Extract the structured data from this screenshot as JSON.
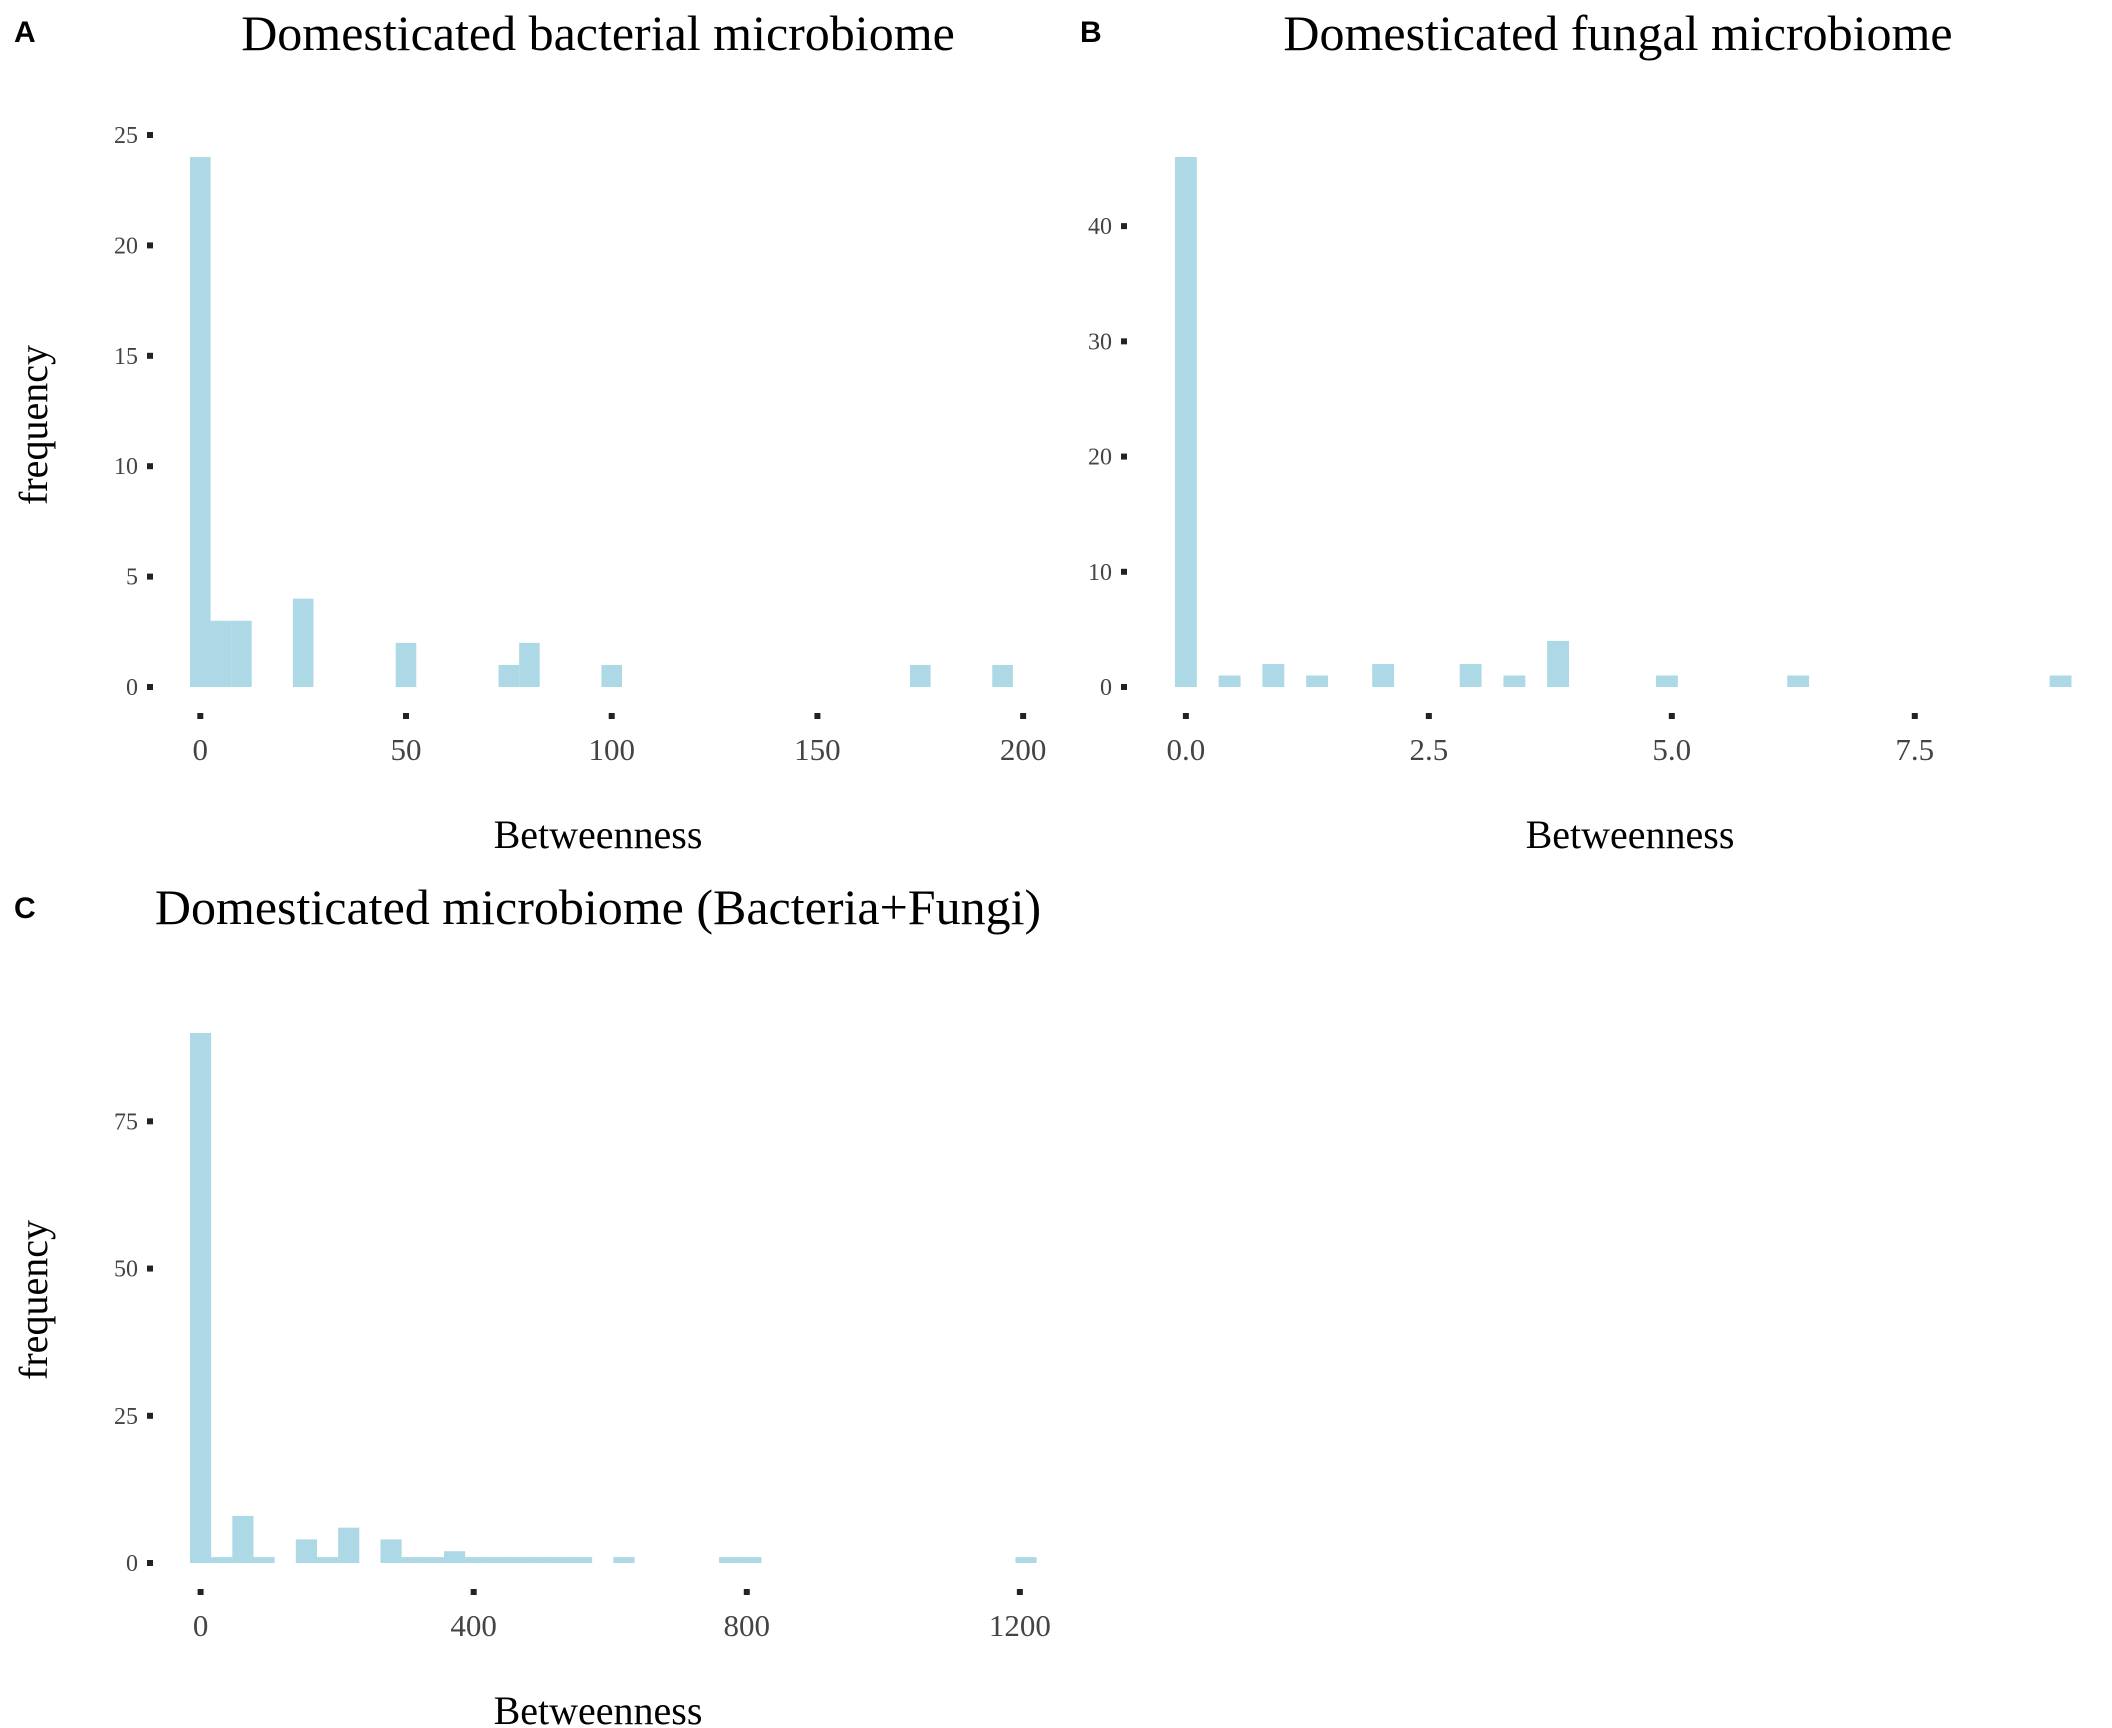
{
  "chart_data": [
    {
      "panel": "A",
      "type": "bar",
      "title": "Domesticated bacterial microbiome",
      "xlabel": "Betweenness",
      "ylabel": "frequency",
      "bin_width": 5,
      "xlim": [
        -2.5,
        207.5
      ],
      "ylim": [
        0,
        25
      ],
      "xticks": [
        0,
        50,
        100,
        150,
        200
      ],
      "xtick_labels": [
        "0",
        "50",
        "100",
        "150",
        "200"
      ],
      "yticks": [
        0,
        5,
        10,
        15,
        20,
        25
      ],
      "ytick_labels": [
        "0",
        "5",
        "10",
        "15",
        "20",
        "25"
      ],
      "bins": [
        {
          "x": 0,
          "count": 24
        },
        {
          "x": 5,
          "count": 3
        },
        {
          "x": 10,
          "count": 3
        },
        {
          "x": 25,
          "count": 4
        },
        {
          "x": 50,
          "count": 2
        },
        {
          "x": 75,
          "count": 1
        },
        {
          "x": 80,
          "count": 2
        },
        {
          "x": 100,
          "count": 1
        },
        {
          "x": 175,
          "count": 1
        },
        {
          "x": 195,
          "count": 1
        }
      ],
      "grid": false
    },
    {
      "panel": "B",
      "type": "bar",
      "title": "Domesticated fungal microbiome",
      "xlabel": "Betweenness",
      "ylabel": "",
      "bin_width": 0.225,
      "xlim": [
        -0.4,
        9.2
      ],
      "ylim": [
        0,
        46
      ],
      "xticks": [
        0,
        2.5,
        5,
        7.5
      ],
      "xtick_labels": [
        "0.0",
        "2.5",
        "5.0",
        "7.5"
      ],
      "yticks": [
        0,
        10,
        20,
        30,
        40
      ],
      "ytick_labels": [
        "0",
        "10",
        "20",
        "30",
        "40"
      ],
      "bins": [
        {
          "x": 0,
          "count": 46
        },
        {
          "x": 0.45,
          "count": 1
        },
        {
          "x": 0.9,
          "count": 2
        },
        {
          "x": 1.35,
          "count": 1
        },
        {
          "x": 2.03,
          "count": 2
        },
        {
          "x": 2.93,
          "count": 2
        },
        {
          "x": 3.38,
          "count": 1
        },
        {
          "x": 3.83,
          "count": 4
        },
        {
          "x": 4.95,
          "count": 1
        },
        {
          "x": 6.3,
          "count": 1
        },
        {
          "x": 9.0,
          "count": 1
        }
      ],
      "grid": false
    },
    {
      "panel": "C",
      "type": "bar",
      "title": "Domesticated microbiome (Bacteria+Fungi)",
      "xlabel": "Betweenness",
      "ylabel": "frequency",
      "bin_width": 31,
      "xlim": [
        -15.5,
        1250
      ],
      "ylim": [
        0,
        90
      ],
      "xticks": [
        0,
        400,
        800,
        1200
      ],
      "xtick_labels": [
        "0",
        "400",
        "800",
        "1200"
      ],
      "yticks": [
        0,
        25,
        50,
        75
      ],
      "ytick_labels": [
        "0",
        "25",
        "50",
        "75"
      ],
      "bins": [
        {
          "x": 0,
          "count": 90
        },
        {
          "x": 31,
          "count": 1
        },
        {
          "x": 62,
          "count": 8
        },
        {
          "x": 93,
          "count": 1
        },
        {
          "x": 155,
          "count": 4
        },
        {
          "x": 186,
          "count": 1
        },
        {
          "x": 217,
          "count": 6
        },
        {
          "x": 279,
          "count": 4
        },
        {
          "x": 310,
          "count": 1
        },
        {
          "x": 341,
          "count": 1
        },
        {
          "x": 372,
          "count": 2
        },
        {
          "x": 403,
          "count": 1
        },
        {
          "x": 434,
          "count": 1
        },
        {
          "x": 465,
          "count": 1
        },
        {
          "x": 496,
          "count": 1
        },
        {
          "x": 527,
          "count": 1
        },
        {
          "x": 558,
          "count": 1
        },
        {
          "x": 620,
          "count": 1
        },
        {
          "x": 775,
          "count": 1
        },
        {
          "x": 806,
          "count": 1
        },
        {
          "x": 1209,
          "count": 1
        }
      ],
      "grid": false
    }
  ]
}
